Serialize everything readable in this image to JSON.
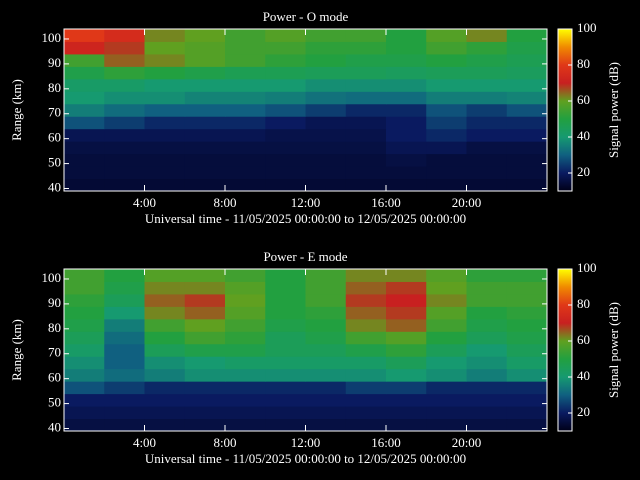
{
  "chart_data": [
    {
      "type": "heatmap",
      "title": "Power - O mode",
      "xlabel": "Universal time - 11/05/2025 00:00:00 to 12/05/2025 00:00:00",
      "ylabel": "Range (km)",
      "colorbar_label": "Signal power (dB)",
      "xlim": [
        0,
        24
      ],
      "ylim": [
        39,
        104
      ],
      "xticks": [
        {
          "value": 4,
          "label": "4:00"
        },
        {
          "value": 8,
          "label": "8:00"
        },
        {
          "value": 12,
          "label": "12:00"
        },
        {
          "value": 16,
          "label": "16:00"
        },
        {
          "value": 20,
          "label": "20:00"
        }
      ],
      "yticks": [
        40,
        50,
        60,
        70,
        80,
        90,
        100
      ],
      "clim": [
        10,
        100
      ],
      "cticks": [
        20,
        40,
        60,
        80,
        100
      ],
      "colormap": [
        "#000018",
        "#0a1a60",
        "#106080",
        "#169a70",
        "#22a040",
        "#60a020",
        "#c82020",
        "#e03818",
        "#f08a00",
        "#ffff00"
      ],
      "x_bins": [
        0,
        2,
        4,
        6,
        8,
        10,
        12,
        14,
        16,
        18,
        20,
        22,
        24
      ],
      "y_bins": [
        39,
        44,
        49,
        54,
        59,
        64,
        69,
        74,
        79,
        84,
        89,
        94,
        99,
        104
      ],
      "values": [
        [
          14,
          14,
          14,
          14,
          14,
          14,
          14,
          14,
          14,
          14,
          14,
          14
        ],
        [
          15,
          15,
          15,
          15,
          15,
          15,
          15,
          15,
          15,
          15,
          15,
          15
        ],
        [
          15,
          15,
          15,
          15,
          15,
          15,
          15,
          15,
          16,
          15,
          15,
          15
        ],
        [
          16,
          16,
          16,
          16,
          16,
          16,
          16,
          16,
          18,
          18,
          16,
          16
        ],
        [
          18,
          18,
          18,
          18,
          18,
          17,
          17,
          17,
          20,
          22,
          20,
          20
        ],
        [
          28,
          25,
          22,
          22,
          22,
          20,
          18,
          18,
          20,
          25,
          22,
          22
        ],
        [
          35,
          32,
          30,
          30,
          30,
          28,
          25,
          22,
          22,
          28,
          25,
          28
        ],
        [
          40,
          38,
          38,
          36,
          36,
          35,
          33,
          32,
          32,
          35,
          35,
          36
        ],
        [
          42,
          42,
          40,
          40,
          40,
          40,
          38,
          38,
          38,
          40,
          40,
          40
        ],
        [
          48,
          52,
          50,
          48,
          46,
          46,
          45,
          45,
          44,
          45,
          45,
          44
        ],
        [
          55,
          65,
          62,
          58,
          55,
          52,
          50,
          48,
          48,
          50,
          48,
          46
        ],
        [
          72,
          68,
          60,
          58,
          55,
          55,
          52,
          52,
          50,
          55,
          52,
          48
        ],
        [
          80,
          75,
          62,
          60,
          55,
          58,
          55,
          55,
          50,
          58,
          62,
          50
        ]
      ]
    },
    {
      "type": "heatmap",
      "title": "Power - E mode",
      "xlabel": "Universal time - 11/05/2025 00:00:00 to 12/05/2025 00:00:00",
      "ylabel": "Range (km)",
      "colorbar_label": "Signal power (dB)",
      "xlim": [
        0,
        24
      ],
      "ylim": [
        39,
        104
      ],
      "xticks": [
        {
          "value": 4,
          "label": "4:00"
        },
        {
          "value": 8,
          "label": "8:00"
        },
        {
          "value": 12,
          "label": "12:00"
        },
        {
          "value": 16,
          "label": "16:00"
        },
        {
          "value": 20,
          "label": "20:00"
        }
      ],
      "yticks": [
        40,
        50,
        60,
        70,
        80,
        90,
        100
      ],
      "clim": [
        10,
        100
      ],
      "cticks": [
        20,
        40,
        60,
        80,
        100
      ],
      "colormap": [
        "#000018",
        "#0a1a60",
        "#106080",
        "#169a70",
        "#22a040",
        "#60a020",
        "#c82020",
        "#e03818",
        "#f08a00",
        "#ffff00"
      ],
      "x_bins": [
        0,
        2,
        4,
        6,
        8,
        10,
        12,
        14,
        16,
        18,
        20,
        22,
        24
      ],
      "y_bins": [
        39,
        44,
        49,
        54,
        59,
        64,
        69,
        74,
        79,
        84,
        89,
        94,
        99,
        104
      ],
      "values": [
        [
          16,
          16,
          16,
          16,
          16,
          16,
          16,
          16,
          16,
          16,
          16,
          16
        ],
        [
          18,
          18,
          18,
          18,
          18,
          18,
          18,
          18,
          18,
          18,
          18,
          18
        ],
        [
          20,
          20,
          20,
          20,
          20,
          20,
          20,
          20,
          20,
          20,
          20,
          20
        ],
        [
          28,
          25,
          22,
          22,
          22,
          22,
          22,
          25,
          25,
          22,
          22,
          22
        ],
        [
          35,
          32,
          35,
          38,
          38,
          38,
          38,
          38,
          40,
          38,
          35,
          38
        ],
        [
          38,
          30,
          38,
          40,
          42,
          42,
          42,
          42,
          45,
          40,
          38,
          42
        ],
        [
          42,
          30,
          45,
          48,
          48,
          45,
          45,
          48,
          52,
          45,
          40,
          45
        ],
        [
          45,
          32,
          50,
          55,
          52,
          45,
          48,
          55,
          58,
          50,
          45,
          48
        ],
        [
          48,
          35,
          55,
          60,
          55,
          48,
          50,
          62,
          65,
          55,
          48,
          50
        ],
        [
          50,
          40,
          62,
          65,
          58,
          50,
          52,
          65,
          68,
          58,
          50,
          52
        ],
        [
          52,
          45,
          65,
          68,
          60,
          50,
          55,
          68,
          70,
          62,
          55,
          55
        ],
        [
          55,
          48,
          62,
          62,
          58,
          50,
          55,
          65,
          68,
          60,
          55,
          55
        ],
        [
          55,
          50,
          58,
          58,
          55,
          50,
          55,
          62,
          62,
          58,
          52,
          52
        ]
      ]
    }
  ]
}
